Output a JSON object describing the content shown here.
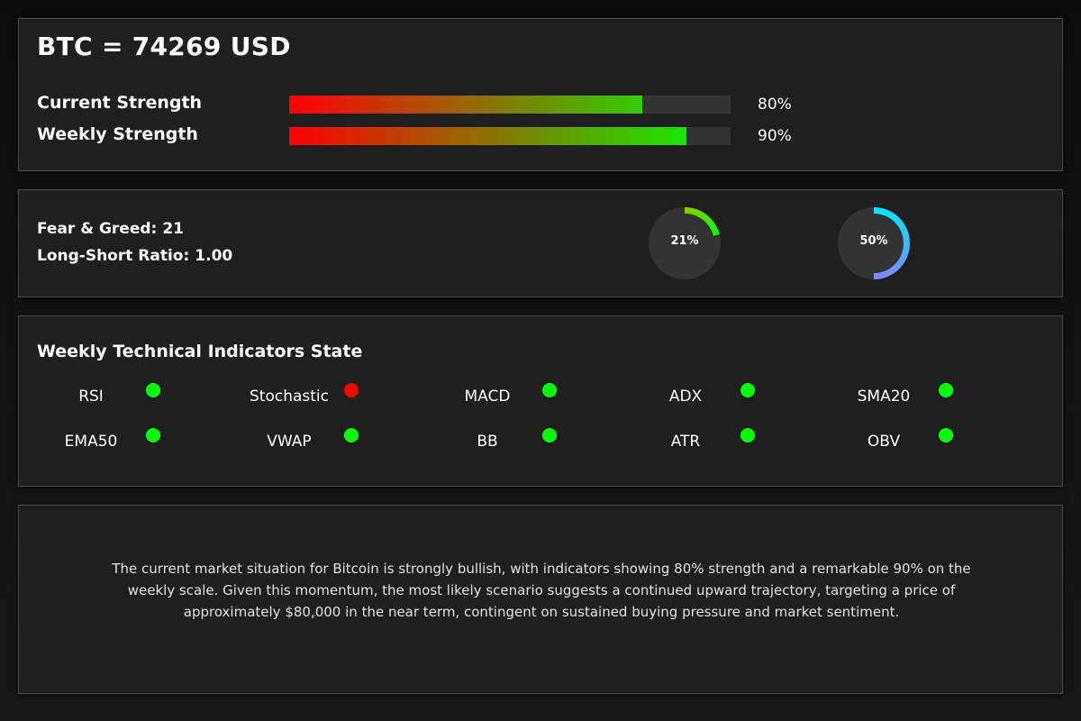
{
  "header": {
    "title": "BTC = 74269 USD"
  },
  "strength": [
    {
      "label": "Current Strength",
      "value": 80,
      "value_label": "80%"
    },
    {
      "label": "Weekly Strength",
      "value": 90,
      "value_label": "90%"
    }
  ],
  "sentiment": {
    "fear_greed_label": "Fear & Greed:",
    "fear_greed_value": "21",
    "long_short_label": "Long-Short Ratio:",
    "long_short_value": "1.00",
    "gauges": [
      {
        "value": 21,
        "label": "21%",
        "colors": [
          "#88cc00",
          "#00ff00"
        ]
      },
      {
        "value": 50,
        "label": "50%",
        "colors": [
          "#00e5ff",
          "#7b8cff"
        ]
      }
    ]
  },
  "indicators": {
    "title": "Weekly Technical Indicators State",
    "items": [
      {
        "name": "RSI",
        "state": "bullish"
      },
      {
        "name": "Stochastic",
        "state": "bearish"
      },
      {
        "name": "MACD",
        "state": "bullish"
      },
      {
        "name": "ADX",
        "state": "bullish"
      },
      {
        "name": "SMA20",
        "state": "bullish"
      },
      {
        "name": "EMA50",
        "state": "bullish"
      },
      {
        "name": "VWAP",
        "state": "bullish"
      },
      {
        "name": "BB",
        "state": "bullish"
      },
      {
        "name": "ATR",
        "state": "bullish"
      },
      {
        "name": "OBV",
        "state": "bullish"
      }
    ],
    "colors": {
      "bullish": "#00ff00",
      "bearish": "#ff0000"
    }
  },
  "summary": {
    "text": "The current market situation for Bitcoin is strongly bullish, with indicators showing 80% strength and a remarkable 90% on the weekly scale. Given this momentum, the most likely scenario suggests a continued upward trajectory, targeting a price of approximately $80,000 in the near term, contingent on sustained buying pressure and market sentiment."
  },
  "colors": {
    "bar_start": "#ff0000",
    "bar_end": "#00ff00",
    "gauge_track": "#333333"
  }
}
